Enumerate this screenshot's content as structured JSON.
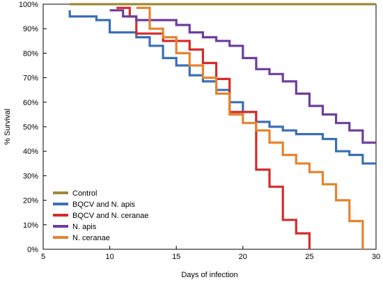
{
  "chart_data": {
    "type": "line",
    "step": true,
    "xlabel": "Days of infection",
    "ylabel": "% Survival",
    "xlim": [
      5,
      30
    ],
    "ylim": [
      0,
      100
    ],
    "x_ticks": [
      5,
      10,
      15,
      20,
      25,
      30
    ],
    "y_ticks": [
      0,
      10,
      20,
      30,
      40,
      50,
      60,
      70,
      80,
      90,
      100
    ],
    "y_tick_suffix": "%",
    "grid": false,
    "legend_position": "bottom-left",
    "series": [
      {
        "name": "Control",
        "color": "#9b8a38",
        "points": [
          [
            7,
            100
          ],
          [
            30,
            100
          ]
        ]
      },
      {
        "name": "BQCV and N. apis",
        "color": "#3a6fb5",
        "points": [
          [
            7,
            97.5
          ],
          [
            7,
            95
          ],
          [
            9,
            95
          ],
          [
            9,
            93.5
          ],
          [
            10,
            93.5
          ],
          [
            10,
            88.5
          ],
          [
            12,
            88.5
          ],
          [
            12,
            86.5
          ],
          [
            13,
            86.5
          ],
          [
            13,
            83
          ],
          [
            14,
            83
          ],
          [
            14,
            78
          ],
          [
            15,
            78
          ],
          [
            15,
            75
          ],
          [
            16,
            75
          ],
          [
            16,
            71
          ],
          [
            17,
            71
          ],
          [
            17,
            68.5
          ],
          [
            18,
            68.5
          ],
          [
            18,
            65
          ],
          [
            19,
            65
          ],
          [
            19,
            60
          ],
          [
            20,
            60
          ],
          [
            20,
            56
          ],
          [
            21,
            56
          ],
          [
            21,
            52
          ],
          [
            22,
            52
          ],
          [
            22,
            50
          ],
          [
            23,
            50
          ],
          [
            23,
            48.5
          ],
          [
            24,
            48.5
          ],
          [
            24,
            47
          ],
          [
            25,
            47
          ],
          [
            25,
            47
          ],
          [
            26,
            47
          ],
          [
            26,
            45
          ],
          [
            27,
            45
          ],
          [
            27,
            40
          ],
          [
            28,
            40
          ],
          [
            28,
            38.5
          ],
          [
            29,
            38.5
          ],
          [
            29,
            35
          ],
          [
            30,
            35
          ]
        ]
      },
      {
        "name": "BQCV and N. ceranae",
        "color": "#d52b2b",
        "points": [
          [
            10.5,
            98.5
          ],
          [
            11.5,
            98.5
          ],
          [
            11.5,
            95
          ],
          [
            12,
            95
          ],
          [
            12,
            88
          ],
          [
            14,
            88
          ],
          [
            14,
            85
          ],
          [
            16,
            85
          ],
          [
            16,
            81.5
          ],
          [
            17,
            81.5
          ],
          [
            17,
            76
          ],
          [
            18,
            76
          ],
          [
            18,
            69.5
          ],
          [
            19,
            69.5
          ],
          [
            19,
            56
          ],
          [
            20,
            56
          ],
          [
            20,
            56
          ],
          [
            21,
            56
          ],
          [
            21,
            32.5
          ],
          [
            22,
            32.5
          ],
          [
            22,
            25.5
          ],
          [
            23,
            25.5
          ],
          [
            23,
            12
          ],
          [
            24,
            12
          ],
          [
            24,
            6.5
          ],
          [
            25,
            6.5
          ],
          [
            25,
            0
          ]
        ]
      },
      {
        "name": "N. apis",
        "color": "#6e3e9c",
        "points": [
          [
            10,
            97.5
          ],
          [
            11,
            97.5
          ],
          [
            11,
            95
          ],
          [
            12,
            95
          ],
          [
            12,
            93.5
          ],
          [
            15,
            93.5
          ],
          [
            15,
            91.5
          ],
          [
            16,
            91.5
          ],
          [
            16,
            88.5
          ],
          [
            17,
            88.5
          ],
          [
            17,
            86.5
          ],
          [
            18,
            86.5
          ],
          [
            18,
            85
          ],
          [
            19,
            85
          ],
          [
            19,
            83
          ],
          [
            20,
            83
          ],
          [
            20,
            78
          ],
          [
            21,
            78
          ],
          [
            21,
            73.5
          ],
          [
            22,
            73.5
          ],
          [
            22,
            71.5
          ],
          [
            23,
            71.5
          ],
          [
            23,
            68.5
          ],
          [
            24,
            68.5
          ],
          [
            24,
            63.5
          ],
          [
            25,
            63.5
          ],
          [
            25,
            58.5
          ],
          [
            26,
            58.5
          ],
          [
            26,
            55
          ],
          [
            27,
            55
          ],
          [
            27,
            51.5
          ],
          [
            28,
            51.5
          ],
          [
            28,
            48.5
          ],
          [
            29,
            48.5
          ],
          [
            29,
            43.5
          ],
          [
            30,
            43.5
          ]
        ]
      },
      {
        "name": "N. ceranae",
        "color": "#e5832d",
        "points": [
          [
            12,
            98.5
          ],
          [
            13,
            98.5
          ],
          [
            13,
            90
          ],
          [
            14,
            90
          ],
          [
            14,
            86.5
          ],
          [
            15,
            86.5
          ],
          [
            15,
            80
          ],
          [
            16,
            80
          ],
          [
            16,
            75
          ],
          [
            17,
            75
          ],
          [
            17,
            70
          ],
          [
            18,
            70
          ],
          [
            18,
            63.5
          ],
          [
            19,
            63.5
          ],
          [
            19,
            55
          ],
          [
            20,
            55
          ],
          [
            20,
            51.5
          ],
          [
            21,
            51.5
          ],
          [
            21,
            48.5
          ],
          [
            22,
            48.5
          ],
          [
            22,
            43.5
          ],
          [
            23,
            43.5
          ],
          [
            23,
            38.5
          ],
          [
            24,
            38.5
          ],
          [
            24,
            35
          ],
          [
            25,
            35
          ],
          [
            25,
            31.5
          ],
          [
            26,
            31.5
          ],
          [
            26,
            26.5
          ],
          [
            27,
            26.5
          ],
          [
            27,
            20
          ],
          [
            28,
            20
          ],
          [
            28,
            11.5
          ],
          [
            29,
            11.5
          ],
          [
            29,
            0
          ]
        ]
      }
    ]
  }
}
